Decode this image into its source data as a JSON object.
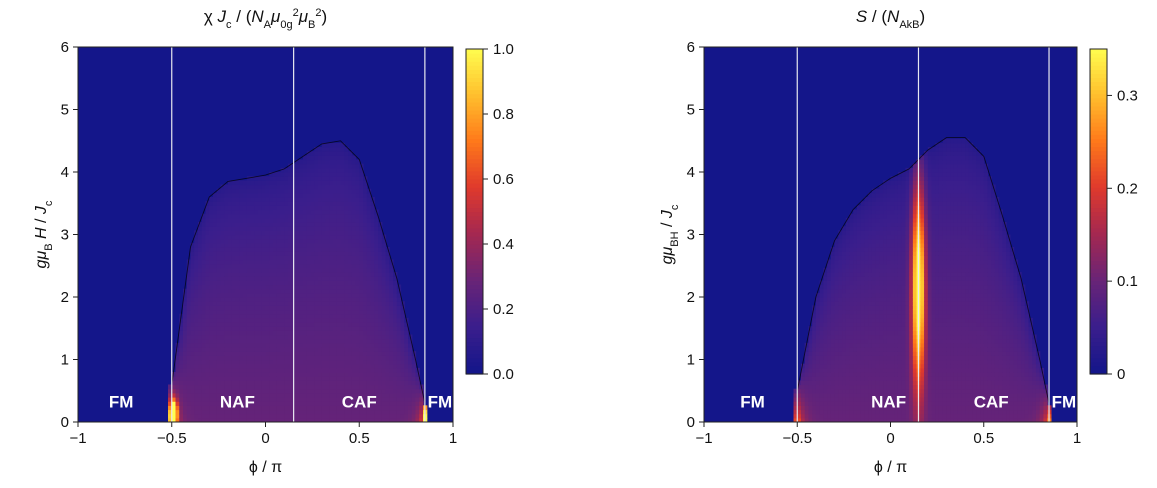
{
  "chart_data": [
    {
      "type": "heatmap",
      "title": "χ J_c / (N_Aμ_0g^2μ_B^2)",
      "xlabel": "ϕ / π",
      "ylabel": "gμ_B H / J_c",
      "xlim": [
        -1,
        1
      ],
      "ylim": [
        0,
        6
      ],
      "xticks": [
        -1,
        -0.5,
        0,
        0.5,
        1
      ],
      "xtick_labels": [
        "−1",
        "−0.5",
        "0",
        "0.5",
        "1"
      ],
      "yticks": [
        0,
        1,
        2,
        3,
        4,
        5,
        6
      ],
      "ytick_labels": [
        "0",
        "1",
        "2",
        "3",
        "4",
        "5",
        "6"
      ],
      "colorbar": {
        "range": [
          0.0,
          1.0
        ],
        "ticks": [
          0.0,
          0.2,
          0.4,
          0.6,
          0.8,
          1.0
        ],
        "tick_labels": [
          "0.0",
          "0.2",
          "0.4",
          "0.6",
          "0.8",
          "1.0"
        ]
      },
      "colormap": [
        "#14168a",
        "#3b1e8c",
        "#6a2476",
        "#a52850",
        "#e03a2c",
        "#ff7a1a",
        "#ffc12e",
        "#ffff50"
      ],
      "phase_boundaries": [
        -0.5,
        0.15,
        0.85
      ],
      "regions": [
        {
          "label": "FM",
          "x": -0.77,
          "y": 0.23
        },
        {
          "label": "NAF",
          "x": -0.15,
          "y": 0.23
        },
        {
          "label": "CAF",
          "x": 0.5,
          "y": 0.23
        },
        {
          "label": "FM",
          "x": 0.93,
          "y": 0.23
        }
      ],
      "dome": {
        "phi": [
          -0.5,
          -0.4,
          -0.3,
          -0.2,
          -0.1,
          0.0,
          0.1,
          0.2,
          0.3,
          0.4,
          0.5,
          0.6,
          0.7,
          0.8,
          0.85
        ],
        "saturation_field": [
          0.6,
          2.8,
          3.6,
          3.85,
          3.9,
          3.95,
          4.05,
          4.25,
          4.45,
          4.5,
          4.2,
          3.3,
          2.3,
          1.0,
          0.3
        ]
      },
      "peaks": [
        {
          "phi": -0.49,
          "H": 0.15,
          "value": 1.0
        },
        {
          "phi": 0.87,
          "H": 0.15,
          "value": 1.0
        }
      ]
    },
    {
      "type": "heatmap",
      "title": "S / (N_Ak_B)",
      "xlabel": "ϕ / π",
      "ylabel": "gμ_BH / J_c",
      "xlim": [
        -1,
        1
      ],
      "ylim": [
        0,
        6
      ],
      "xticks": [
        -1,
        -0.5,
        0,
        0.5,
        1
      ],
      "xtick_labels": [
        "−1",
        "−0.5",
        "0",
        "0.5",
        "1"
      ],
      "yticks": [
        0,
        1,
        2,
        3,
        4,
        5,
        6
      ],
      "ytick_labels": [
        "0",
        "1",
        "2",
        "3",
        "4",
        "5",
        "6"
      ],
      "colorbar": {
        "range": [
          0,
          0.35
        ],
        "ticks": [
          0,
          0.1,
          0.2,
          0.3
        ],
        "tick_labels": [
          "0",
          "0.1",
          "0.2",
          "0.3"
        ]
      },
      "colormap": [
        "#14168a",
        "#3b1e8c",
        "#6a2476",
        "#a52850",
        "#e03a2c",
        "#ff7a1a",
        "#ffc12e",
        "#ffff50"
      ],
      "phase_boundaries": [
        -0.5,
        0.15,
        0.85
      ],
      "regions": [
        {
          "label": "FM",
          "x": -0.74,
          "y": 0.23
        },
        {
          "label": "NAF",
          "x": -0.01,
          "y": 0.23
        },
        {
          "label": "CAF",
          "x": 0.54,
          "y": 0.23
        },
        {
          "label": "FM",
          "x": 0.93,
          "y": 0.23
        }
      ],
      "dome": {
        "phi": [
          -0.5,
          -0.4,
          -0.3,
          -0.2,
          -0.1,
          0.0,
          0.1,
          0.2,
          0.3,
          0.4,
          0.5,
          0.6,
          0.7,
          0.8,
          0.85
        ],
        "saturation_field": [
          0.5,
          2.0,
          2.9,
          3.4,
          3.7,
          3.9,
          4.05,
          4.35,
          4.55,
          4.55,
          4.25,
          3.3,
          2.3,
          1.0,
          0.3
        ]
      },
      "peaks": [
        {
          "phi": 0.15,
          "H": 2.2,
          "value": 0.32
        }
      ]
    }
  ]
}
